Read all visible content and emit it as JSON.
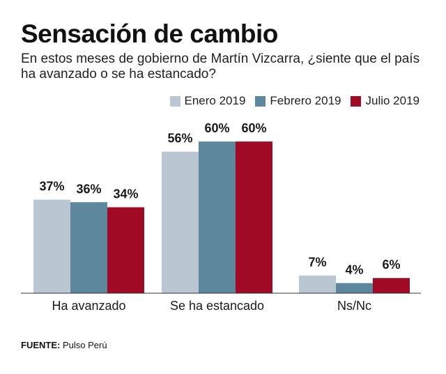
{
  "chart_data": {
    "type": "bar",
    "title": "Sensación de cambio",
    "subtitle": "En estos meses de gobierno de Martín Vizcarra, ¿siente que el país ha avanzado o se ha estancado?",
    "categories": [
      "Ha avanzado",
      "Se ha estancado",
      "Ns/Nc"
    ],
    "series": [
      {
        "name": "Enero 2019",
        "color": "#bac6d1",
        "values": [
          37,
          56,
          7
        ],
        "labels": [
          "37%",
          "56%",
          "7%"
        ]
      },
      {
        "name": "Febrero 2019",
        "color": "#5d879c",
        "values": [
          36,
          60,
          4
        ],
        "labels": [
          "36%",
          "60%",
          "4%"
        ]
      },
      {
        "name": "Julio 2019",
        "color": "#a00a24",
        "values": [
          34,
          60,
          6
        ],
        "labels": [
          "34%",
          "60%",
          "6%"
        ]
      }
    ],
    "ylim": [
      0,
      60
    ],
    "xlabel": "",
    "ylabel": "",
    "legend_position": "top-right",
    "grid": false
  },
  "source": {
    "label": "FUENTE:",
    "text": "Pulso Perú"
  }
}
